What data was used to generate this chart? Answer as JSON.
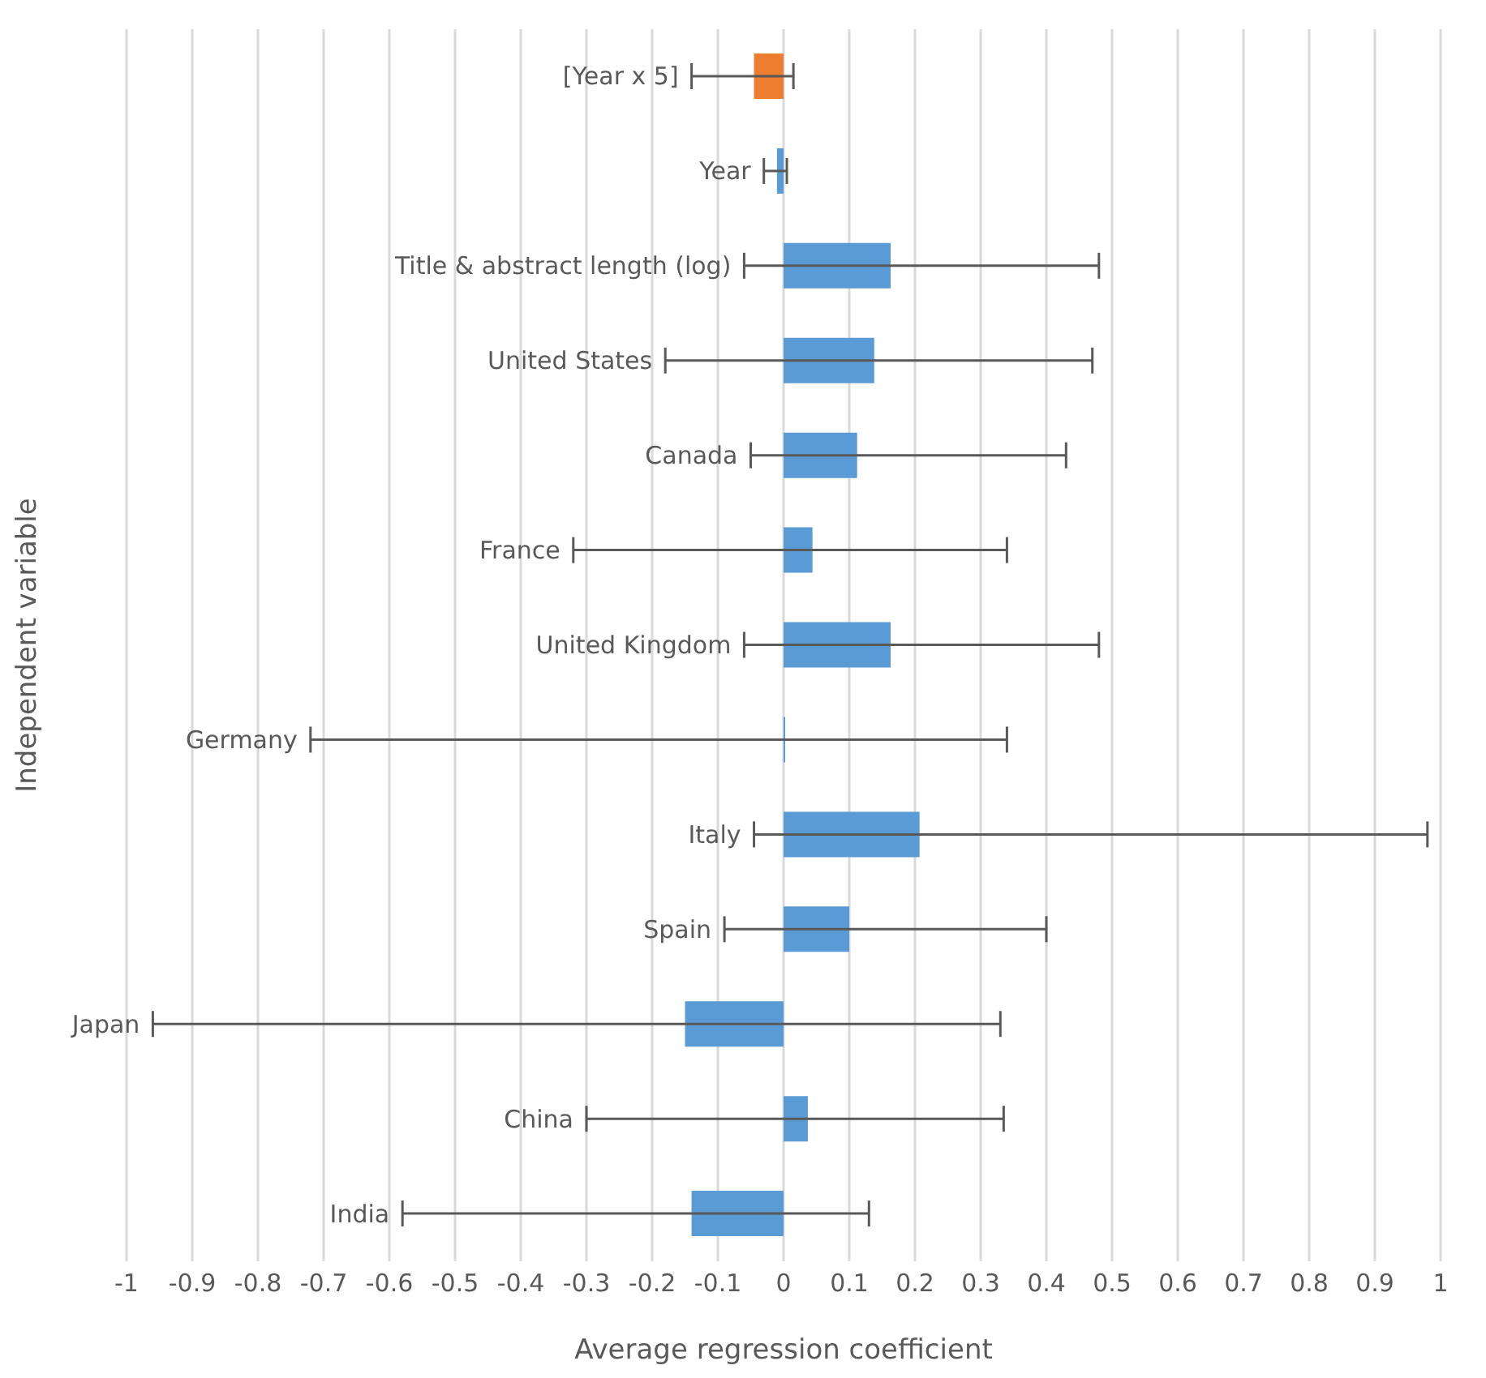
{
  "chart_data": {
    "type": "bar",
    "orientation": "horizontal",
    "xlabel": "Average regression coefficient",
    "ylabel": "Independent variable",
    "categories": [
      "[Year x 5]",
      "Year",
      "Title & abstract length (log)",
      "United States",
      "Canada",
      "France",
      "United Kingdom",
      "Germany",
      "Italy",
      "Spain",
      "Japan",
      "China",
      "India"
    ],
    "values": [
      -0.045,
      -0.01,
      0.163,
      0.138,
      0.112,
      0.044,
      0.163,
      0,
      0.207,
      0.1,
      -0.15,
      0.037,
      -0.14
    ],
    "colors": [
      "#ed7d31",
      "#5b9bd5",
      "#5b9bd5",
      "#5b9bd5",
      "#5b9bd5",
      "#5b9bd5",
      "#5b9bd5",
      "#5b9bd5",
      "#5b9bd5",
      "#5b9bd5",
      "#5b9bd5",
      "#5b9bd5",
      "#5b9bd5"
    ],
    "errors": [
      [
        -0.14,
        0.015
      ],
      [
        -0.03,
        0.005
      ],
      [
        -0.06,
        0.48
      ],
      [
        -0.18,
        0.47
      ],
      [
        -0.05,
        0.43
      ],
      [
        -0.32,
        0.34
      ],
      [
        -0.06,
        0.48
      ],
      [
        -0.72,
        0.34
      ],
      [
        -0.045,
        0.98
      ],
      [
        -0.09,
        0.4
      ],
      [
        -0.96,
        0.33
      ],
      [
        -0.3,
        0.335
      ],
      [
        -0.58,
        0.13
      ]
    ],
    "xlim": [
      -1,
      1
    ],
    "xticks": [
      -1,
      -0.9,
      -0.8,
      -0.7,
      -0.6,
      -0.5,
      -0.4,
      -0.3,
      -0.2,
      -0.1,
      0,
      0.1,
      0.2,
      0.3,
      0.4,
      0.5,
      0.6,
      0.7,
      0.8,
      0.9,
      1
    ],
    "grid": "x",
    "legend": false
  }
}
